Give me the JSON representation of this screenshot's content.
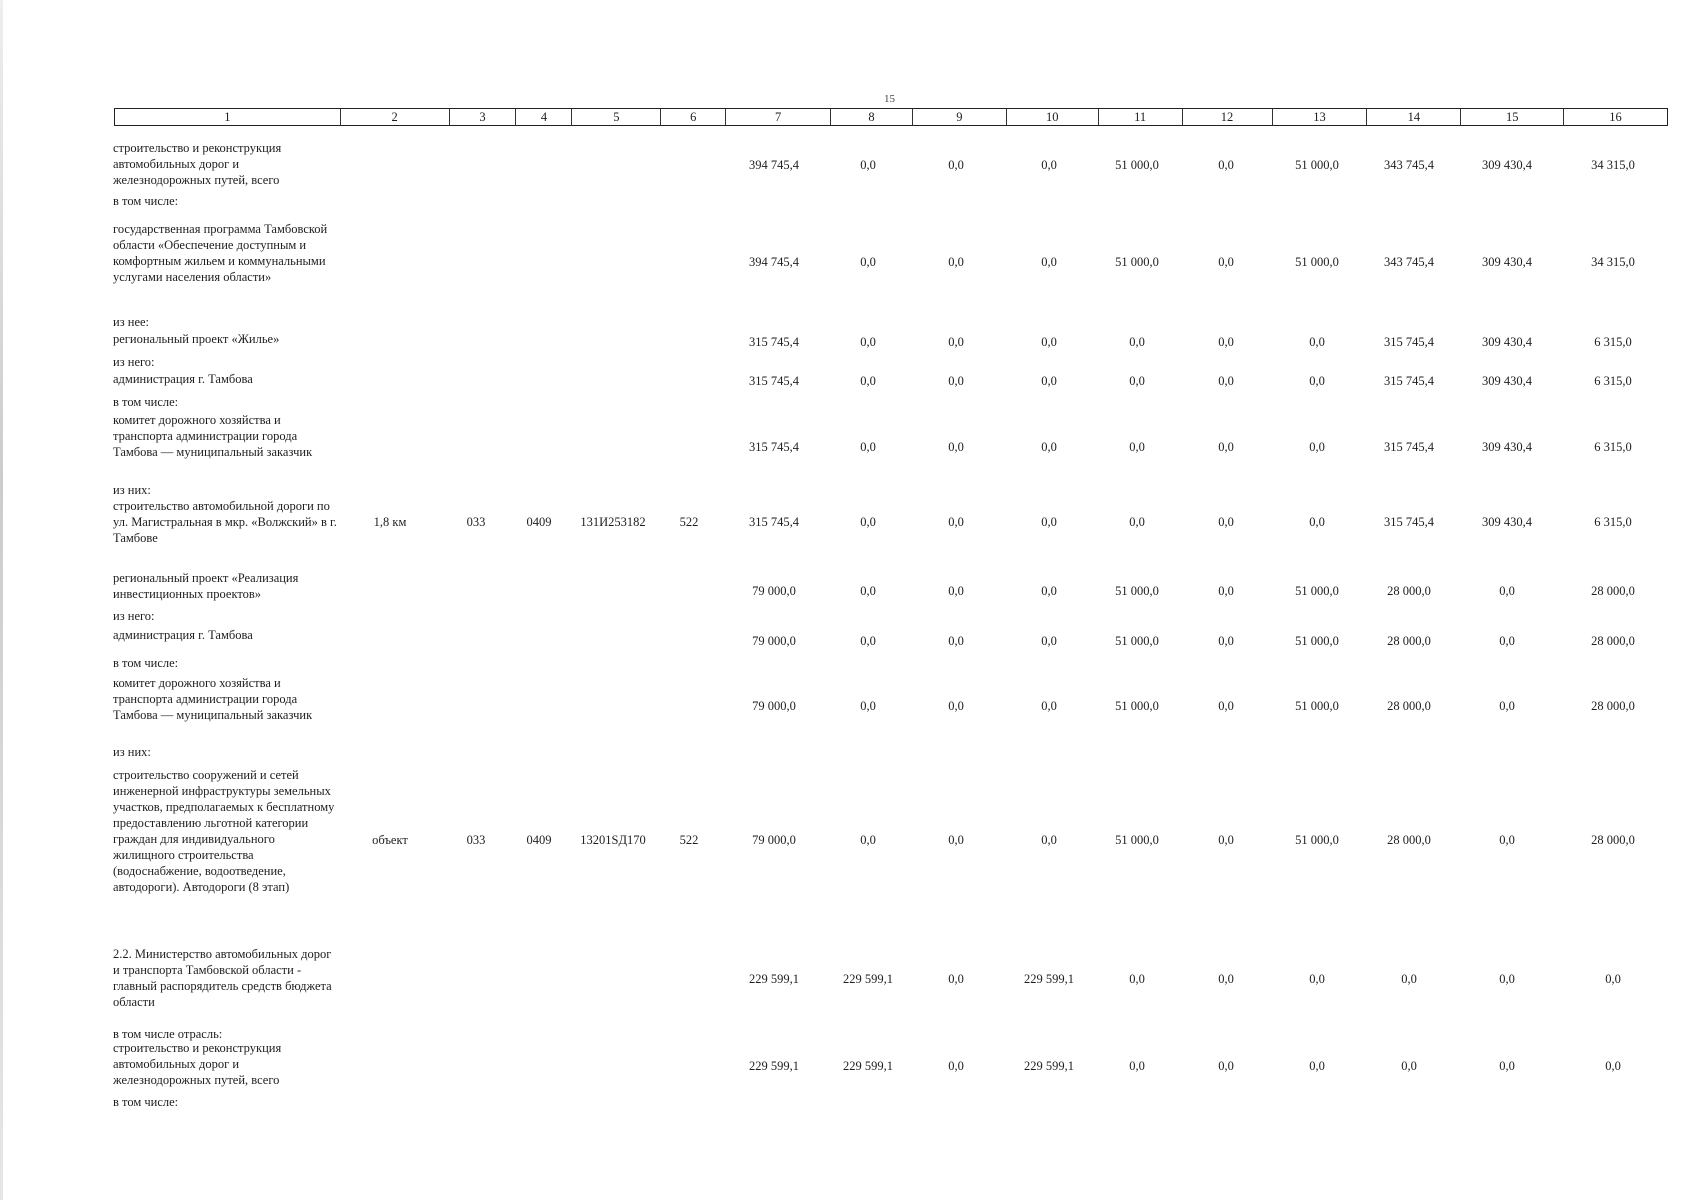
{
  "page_number": "15",
  "header": [
    "1",
    "2",
    "3",
    "4",
    "5",
    "6",
    "7",
    "8",
    "9",
    "10",
    "11",
    "12",
    "13",
    "14",
    "15",
    "16"
  ],
  "rows": [
    {
      "name": "row-roads-total-1",
      "desc": "строительство и реконструкция автомобильных дорог и железнодорожных путей, всего",
      "c2": "",
      "c3": "",
      "c4": "",
      "c5": "",
      "c6": "",
      "c7": "394 745,4",
      "c8": "0,0",
      "c9": "0,0",
      "c10": "0,0",
      "c11": "51 000,0",
      "c12": "0,0",
      "c13": "51 000,0",
      "c14": "343 745,4",
      "c15": "309 430,4",
      "c16": "34 315,0"
    },
    {
      "name": "row-state-program",
      "desc": "государственная программа Тамбовской области «Обеспечение доступным и комфортным жильем и коммунальными услугами населения области»",
      "c2": "",
      "c3": "",
      "c4": "",
      "c5": "",
      "c6": "",
      "c7": "394 745,4",
      "c8": "0,0",
      "c9": "0,0",
      "c10": "0,0",
      "c11": "51 000,0",
      "c12": "0,0",
      "c13": "51 000,0",
      "c14": "343 745,4",
      "c15": "309 430,4",
      "c16": "34 315,0"
    },
    {
      "name": "row-project-housing",
      "desc": "региональный проект «Жилье»",
      "c2": "",
      "c3": "",
      "c4": "",
      "c5": "",
      "c6": "",
      "c7": "315 745,4",
      "c8": "0,0",
      "c9": "0,0",
      "c10": "0,0",
      "c11": "0,0",
      "c12": "0,0",
      "c13": "0,0",
      "c14": "315 745,4",
      "c15": "309 430,4",
      "c16": "6 315,0"
    },
    {
      "name": "row-admin-tambov-1",
      "desc": "администрация г. Тамбова",
      "c2": "",
      "c3": "",
      "c4": "",
      "c5": "",
      "c6": "",
      "c7": "315 745,4",
      "c8": "0,0",
      "c9": "0,0",
      "c10": "0,0",
      "c11": "0,0",
      "c12": "0,0",
      "c13": "0,0",
      "c14": "315 745,4",
      "c15": "309 430,4",
      "c16": "6 315,0"
    },
    {
      "name": "row-committee-1",
      "desc": "комитет дорожного хозяйства и транспорта администрации города Тамбова — муниципальный заказчик",
      "c2": "",
      "c3": "",
      "c4": "",
      "c5": "",
      "c6": "",
      "c7": "315 745,4",
      "c8": "0,0",
      "c9": "0,0",
      "c10": "0,0",
      "c11": "0,0",
      "c12": "0,0",
      "c13": "0,0",
      "c14": "315 745,4",
      "c15": "309 430,4",
      "c16": "6 315,0"
    },
    {
      "name": "row-road-magistralnaya",
      "desc": "строительство автомобильной дороги по ул. Магистральная в мкр. «Волжский» в г. Тамбове",
      "c2": "1,8 км",
      "c3": "033",
      "c4": "0409",
      "c5": "131И253182",
      "c6": "522",
      "c7": "315 745,4",
      "c8": "0,0",
      "c9": "0,0",
      "c10": "0,0",
      "c11": "0,0",
      "c12": "0,0",
      "c13": "0,0",
      "c14": "315 745,4",
      "c15": "309 430,4",
      "c16": "6 315,0"
    },
    {
      "name": "row-project-investment",
      "desc": "региональный проект «Реализация инвестиционных проектов»",
      "c2": "",
      "c3": "",
      "c4": "",
      "c5": "",
      "c6": "",
      "c7": "79 000,0",
      "c8": "0,0",
      "c9": "0,0",
      "c10": "0,0",
      "c11": "51 000,0",
      "c12": "0,0",
      "c13": "51 000,0",
      "c14": "28 000,0",
      "c15": "0,0",
      "c16": "28 000,0"
    },
    {
      "name": "row-admin-tambov-2",
      "desc": "администрация г. Тамбова",
      "c2": "",
      "c3": "",
      "c4": "",
      "c5": "",
      "c6": "",
      "c7": "79 000,0",
      "c8": "0,0",
      "c9": "0,0",
      "c10": "0,0",
      "c11": "51 000,0",
      "c12": "0,0",
      "c13": "51 000,0",
      "c14": "28 000,0",
      "c15": "0,0",
      "c16": "28 000,0"
    },
    {
      "name": "row-committee-2",
      "desc": "комитет дорожного хозяйства и транспорта администрации города Тамбова — муниципальный заказчик",
      "c2": "",
      "c3": "",
      "c4": "",
      "c5": "",
      "c6": "",
      "c7": "79 000,0",
      "c8": "0,0",
      "c9": "0,0",
      "c10": "0,0",
      "c11": "51 000,0",
      "c12": "0,0",
      "c13": "51 000,0",
      "c14": "28 000,0",
      "c15": "0,0",
      "c16": "28 000,0"
    },
    {
      "name": "row-infrastructure",
      "desc": "строительство сооружений и сетей инженерной инфраструктуры земельных участков, предполагаемых к бесплатному предоставлению льготной категории граждан для индивидуального жилищного строительства (водоснабжение, водоотведение, автодороги). Автодороги (8 этап)",
      "c2": "объект",
      "c3": "033",
      "c4": "0409",
      "c5": "13201SД170",
      "c6": "522",
      "c7": "79 000,0",
      "c8": "0,0",
      "c9": "0,0",
      "c10": "0,0",
      "c11": "51 000,0",
      "c12": "0,0",
      "c13": "51 000,0",
      "c14": "28 000,0",
      "c15": "0,0",
      "c16": "28 000,0"
    },
    {
      "name": "row-ministry",
      "desc": "2.2. Министерство автомобильных дорог и транспорта Тамбовской области - главный распорядитель средств бюджета области",
      "c2": "",
      "c3": "",
      "c4": "",
      "c5": "",
      "c6": "",
      "c7": "229 599,1",
      "c8": "229 599,1",
      "c9": "0,0",
      "c10": "229 599,1",
      "c11": "0,0",
      "c12": "0,0",
      "c13": "0,0",
      "c14": "0,0",
      "c15": "0,0",
      "c16": "0,0"
    },
    {
      "name": "row-roads-total-2",
      "desc": "строительство и реконструкция автомобильных дорог и железнодорожных путей, всего",
      "c2": "",
      "c3": "",
      "c4": "",
      "c5": "",
      "c6": "",
      "c7": "229 599,1",
      "c8": "229 599,1",
      "c9": "0,0",
      "c10": "229 599,1",
      "c11": "0,0",
      "c12": "0,0",
      "c13": "0,0",
      "c14": "0,0",
      "c15": "0,0",
      "c16": "0,0"
    }
  ],
  "labels": {
    "v_tom_chisle": "в том числе:",
    "iz_nee": "из нее:",
    "iz_nego": "из него:",
    "iz_nih": "из них:",
    "v_tom_chisle_otrasl": "в том числе отрасль:"
  }
}
